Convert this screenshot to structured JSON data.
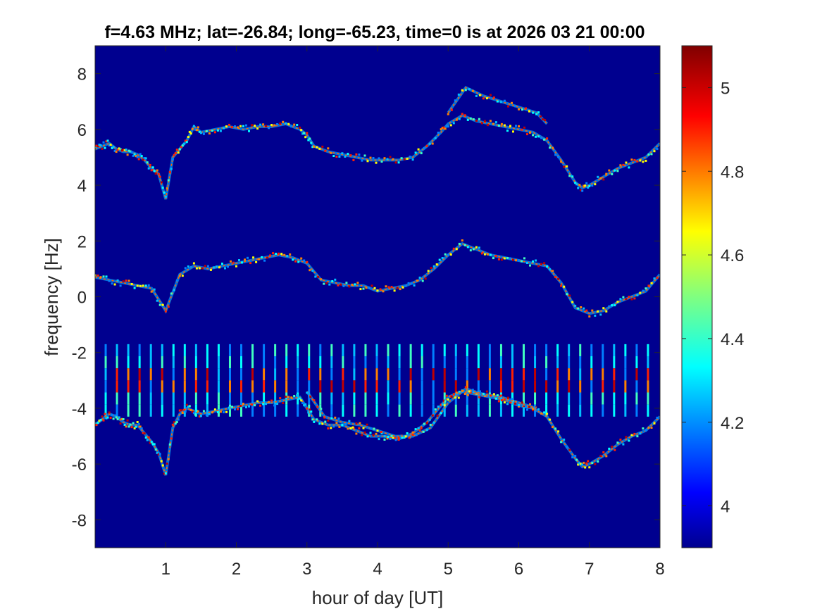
{
  "chart_data": {
    "type": "heatmap",
    "title": "f=4.63 MHz;  lat=-26.84; long=-65.23, time=0 is at 2026 03 21 00:00",
    "xlabel": "hour of day [UT]",
    "ylabel": "frequency [Hz]",
    "xlim": [
      0,
      8
    ],
    "ylim": [
      -9,
      9
    ],
    "xticks": [
      1,
      2,
      3,
      4,
      5,
      6,
      7,
      8
    ],
    "yticks": [
      8,
      6,
      4,
      2,
      0,
      -2,
      -4,
      -6,
      -8
    ],
    "colorbar": {
      "range": [
        3.9,
        5.1
      ],
      "ticks": [
        5,
        4.8,
        4.6,
        4.4,
        4.2,
        4
      ],
      "colormap": "jet"
    },
    "background_color": "#00008f",
    "series": [
      {
        "x": [
          0,
          0.1,
          0.2,
          0.3,
          0.4,
          0.5,
          0.6,
          0.7,
          0.8,
          0.9,
          1.0,
          1.1,
          1.2,
          1.3,
          1.4,
          1.5,
          1.7,
          1.9,
          2.1,
          2.3,
          2.5,
          2.7,
          2.9,
          3.0,
          3.1,
          3.3,
          3.5,
          3.7,
          3.9,
          4.1,
          4.3,
          4.5,
          4.7,
          4.9,
          5.0,
          5.2,
          5.4,
          5.6,
          5.8,
          6.0,
          6.2,
          6.4,
          6.6,
          6.8,
          6.9,
          7.0,
          7.2,
          7.4,
          7.6,
          7.8,
          8.0
        ],
        "y": [
          5.3,
          5.4,
          5.5,
          5.3,
          5.2,
          5.2,
          5.1,
          4.9,
          4.6,
          4.4,
          3.5,
          5.0,
          5.3,
          5.6,
          6.1,
          5.9,
          6.0,
          6.1,
          6.0,
          6.1,
          6.1,
          6.2,
          6.0,
          5.8,
          5.4,
          5.2,
          5.1,
          5.0,
          4.9,
          4.9,
          4.9,
          5.0,
          5.4,
          5.9,
          6.2,
          6.5,
          6.3,
          6.2,
          6.1,
          6.0,
          5.9,
          5.6,
          4.9,
          4.1,
          3.9,
          4.0,
          4.3,
          4.6,
          4.8,
          5.0,
          5.5
        ]
      },
      {
        "x": [
          0,
          0.2,
          0.4,
          0.6,
          0.8,
          1.0,
          1.2,
          1.4,
          1.6,
          1.8,
          2.0,
          2.2,
          2.4,
          2.6,
          2.8,
          3.0,
          3.2,
          3.4,
          3.6,
          3.8,
          4.0,
          4.2,
          4.4,
          4.6,
          4.8,
          5.0,
          5.2,
          5.4,
          5.6,
          5.8,
          6.0,
          6.2,
          6.4,
          6.6,
          6.8,
          7.0,
          7.2,
          7.4,
          7.6,
          7.8,
          8.0
        ],
        "y": [
          0.7,
          0.6,
          0.5,
          0.4,
          0.3,
          -0.5,
          0.8,
          1.1,
          1.0,
          1.1,
          1.2,
          1.3,
          1.4,
          1.5,
          1.4,
          1.2,
          0.6,
          0.5,
          0.4,
          0.4,
          0.2,
          0.3,
          0.4,
          0.6,
          1.0,
          1.5,
          1.9,
          1.7,
          1.5,
          1.4,
          1.3,
          1.2,
          1.1,
          0.5,
          -0.4,
          -0.6,
          -0.5,
          -0.2,
          0.0,
          0.2,
          0.8
        ]
      },
      {
        "x": [
          0,
          0.1,
          0.2,
          0.3,
          0.4,
          0.5,
          0.6,
          0.7,
          0.8,
          0.9,
          1.0,
          1.1,
          1.2,
          1.3,
          1.4,
          1.5,
          1.7,
          1.9,
          2.1,
          2.3,
          2.5,
          2.7,
          2.9,
          3.0,
          3.1,
          3.3,
          3.5,
          3.7,
          3.9,
          4.1,
          4.3,
          4.5,
          4.7,
          4.9,
          5.0,
          5.2,
          5.4,
          5.6,
          5.8,
          6.0,
          6.2,
          6.4,
          6.6,
          6.8,
          6.9,
          7.0,
          7.2,
          7.4,
          7.6,
          7.8,
          8.0
        ],
        "y": [
          -4.6,
          -4.4,
          -4.2,
          -4.3,
          -4.5,
          -4.6,
          -4.6,
          -4.9,
          -5.2,
          -5.6,
          -6.4,
          -4.7,
          -4.2,
          -4.0,
          -4.1,
          -4.2,
          -4.1,
          -4.0,
          -3.9,
          -3.8,
          -3.8,
          -3.7,
          -3.6,
          -4.0,
          -4.4,
          -4.6,
          -4.6,
          -4.8,
          -5.0,
          -5.0,
          -5.1,
          -4.9,
          -4.5,
          -3.9,
          -3.6,
          -3.4,
          -3.5,
          -3.6,
          -3.7,
          -3.9,
          -4.0,
          -4.3,
          -5.1,
          -5.8,
          -6.1,
          -6.0,
          -5.7,
          -5.3,
          -5.0,
          -4.8,
          -4.3
        ]
      },
      {
        "x": [
          3.0,
          3.25,
          3.5,
          3.75,
          4.0,
          4.25,
          4.5,
          4.75,
          5.0,
          5.25,
          5.5,
          5.75,
          6.0,
          6.25
        ],
        "y": [
          -3.4,
          -4.3,
          -4.5,
          -4.6,
          -4.8,
          -5.0,
          -5.0,
          -4.7,
          -3.8,
          -3.3,
          -3.5,
          -3.6,
          -3.8,
          -4.0
        ]
      },
      {
        "x": [
          5.0,
          5.25,
          5.5,
          5.75,
          6.0,
          6.25,
          6.4
        ],
        "y": [
          6.6,
          7.5,
          7.2,
          7.0,
          6.8,
          6.6,
          6.2
        ]
      }
    ],
    "vertical_bands": {
      "x_start": 0.15,
      "x_step": 0.16,
      "x_end": 7.9,
      "y_range": [
        -4.3,
        -1.7
      ]
    }
  }
}
